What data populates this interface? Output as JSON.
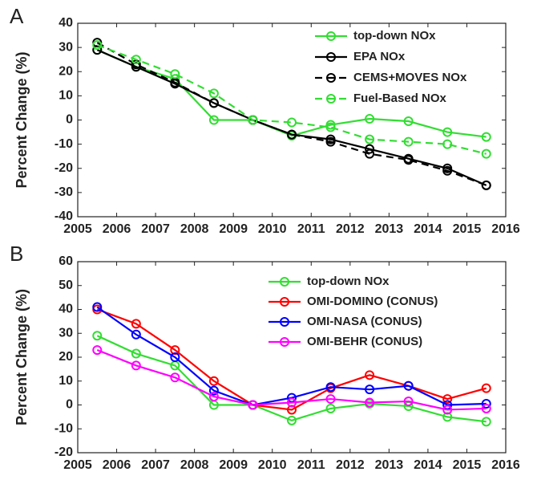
{
  "chart_data": [
    {
      "type": "line",
      "panel_label": "A",
      "y_label": "Percent Change (%)",
      "x": [
        2005.5,
        2006.5,
        2007.5,
        2008.5,
        2009.5,
        2010.5,
        2011.5,
        2012.5,
        2013.5,
        2014.5,
        2015.5
      ],
      "xlim": [
        2005,
        2016
      ],
      "xticks": [
        2005,
        2006,
        2007,
        2008,
        2009,
        2010,
        2011,
        2012,
        2013,
        2014,
        2015,
        2016
      ],
      "ylim": [
        -40,
        40
      ],
      "yticks": [
        -40,
        -30,
        -20,
        -10,
        0,
        10,
        20,
        30,
        40
      ],
      "legend": "upper right",
      "series": [
        {
          "name": "top-down NOx",
          "color": "#33dd33",
          "dashed": false,
          "values": [
            29,
            22,
            17,
            0,
            0,
            -6.5,
            -2,
            0.5,
            -0.5,
            -5,
            -7
          ]
        },
        {
          "name": "EPA NOx",
          "color": "#000000",
          "dashed": false,
          "values": [
            29,
            22,
            15,
            7,
            0,
            -6,
            -8,
            -12,
            -16,
            -20,
            -27
          ]
        },
        {
          "name": "CEMS+MOVES NOx",
          "color": "#000000",
          "dashed": true,
          "values": [
            32,
            23,
            15.5,
            7,
            0,
            -6,
            -9,
            -14,
            -16.5,
            -21,
            -27
          ]
        },
        {
          "name": "Fuel-Based NOx",
          "color": "#33dd33",
          "dashed": true,
          "values": [
            31,
            25,
            19,
            11,
            0,
            -1,
            -3,
            -8,
            -9,
            -10,
            -14
          ]
        }
      ]
    },
    {
      "type": "line",
      "panel_label": "B",
      "y_label": "Percent Change (%)",
      "x": [
        2005.5,
        2006.5,
        2007.5,
        2008.5,
        2009.5,
        2010.5,
        2011.5,
        2012.5,
        2013.5,
        2014.5,
        2015.5
      ],
      "xlim": [
        2005,
        2016
      ],
      "xticks": [
        2005,
        2006,
        2007,
        2008,
        2009,
        2010,
        2011,
        2012,
        2013,
        2014,
        2015,
        2016
      ],
      "ylim": [
        -20,
        60
      ],
      "yticks": [
        -20,
        -10,
        0,
        10,
        20,
        30,
        40,
        50,
        60
      ],
      "legend": "upper right",
      "series": [
        {
          "name": "top-down NOx",
          "color": "#33dd33",
          "dashed": false,
          "values": [
            29,
            21.5,
            16.5,
            0,
            0,
            -6.5,
            -1.5,
            0.5,
            -0.5,
            -5,
            -7
          ]
        },
        {
          "name": "OMI-DOMINO (CONUS)",
          "color": "#ff0000",
          "dashed": false,
          "values": [
            40,
            34,
            23,
            10,
            0,
            -2,
            7,
            12.5,
            8,
            2.5,
            7
          ]
        },
        {
          "name": "OMI-NASA (CONUS)",
          "color": "#0000ff",
          "dashed": false,
          "values": [
            41,
            29.5,
            20,
            6,
            0,
            3,
            7.5,
            6.5,
            8,
            0,
            0.5
          ]
        },
        {
          "name": "OMI-BEHR (CONUS)",
          "color": "#ff00ff",
          "dashed": false,
          "values": [
            23,
            16.5,
            11.5,
            3.5,
            0,
            1,
            2.5,
            1,
            1.5,
            -2,
            -1.5
          ]
        }
      ]
    }
  ]
}
